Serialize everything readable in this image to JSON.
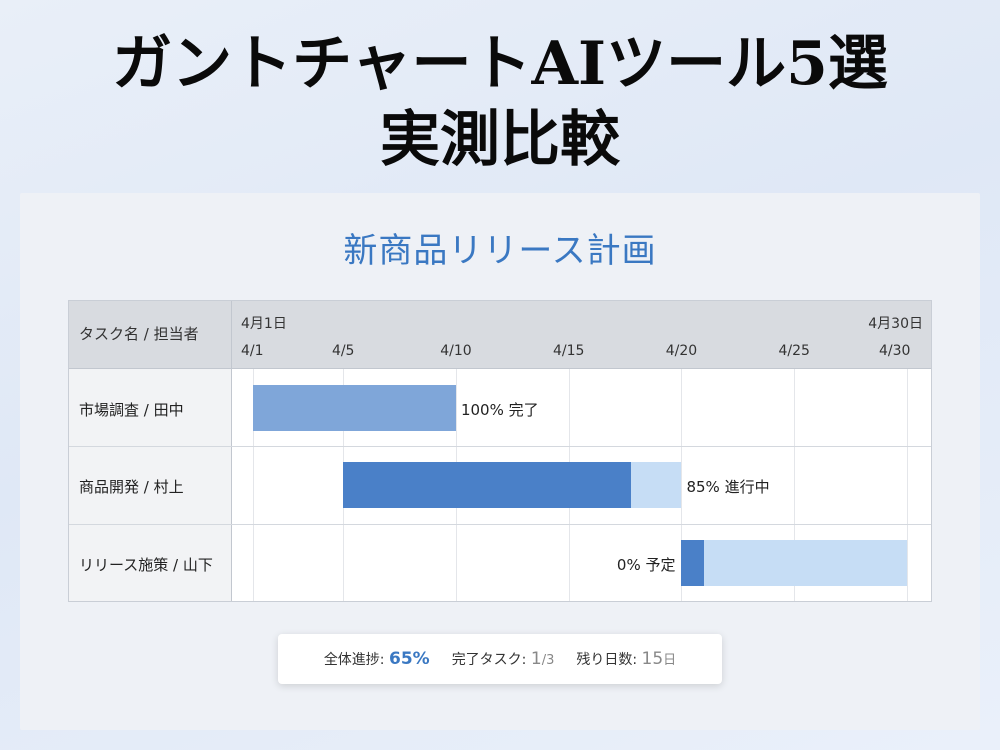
{
  "page": {
    "title_line1": "ガントチャートAIツール5選",
    "title_line2": "実測比較"
  },
  "chart_data": {
    "type": "gantt",
    "title": "新商品リリース計画",
    "task_header": "タスク名 / 担当者",
    "month_start_label": "4月1日",
    "month_end_label": "4月30日",
    "x_ticks": [
      "4/1",
      "4/5",
      "4/10",
      "4/15",
      "4/20",
      "4/25",
      "4/30"
    ],
    "tick_days": [
      1,
      5,
      10,
      15,
      20,
      25,
      30
    ],
    "x_range": [
      0,
      30
    ],
    "tasks": [
      {
        "name": "市場調査 / 田中",
        "start": 1,
        "end": 10,
        "progress": 100,
        "label": "100% 完了",
        "label_position": "right"
      },
      {
        "name": "商品開発 / 村上",
        "start": 5,
        "end": 20,
        "progress": 85,
        "label": "85% 進行中",
        "label_position": "right"
      },
      {
        "name": "リリース施策 / 山下",
        "start": 20,
        "end": 30,
        "progress": 0,
        "label": "0% 予定",
        "label_position": "left"
      }
    ],
    "colors": {
      "progress": "#4a80c8",
      "remaining": "#c6ddf5",
      "completed": "#7fa6d9"
    }
  },
  "summary": {
    "overall_label": "全体進捗:",
    "overall_value": "65%",
    "tasks_label": "完了タスク:",
    "tasks_done": "1",
    "tasks_total": "/3",
    "days_label": "残り日数:",
    "days_value": "15",
    "days_unit": "日"
  }
}
